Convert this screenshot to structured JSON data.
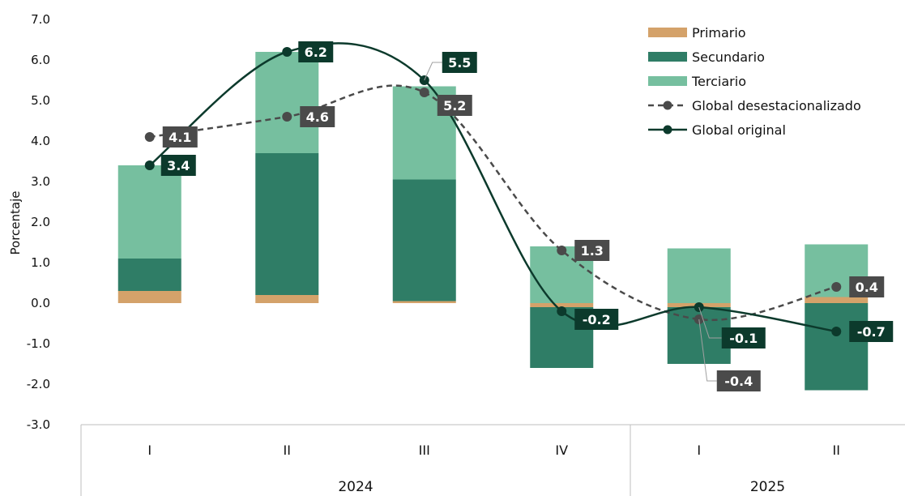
{
  "chart_data": {
    "type": "bar",
    "stacked": true,
    "ylabel": "Porcentaje",
    "ylim": [
      -3.0,
      7.0
    ],
    "yticks": [
      "7.0",
      "6.0",
      "5.0",
      "4.0",
      "3.0",
      "2.0",
      "1.0",
      "0.0",
      "-1.0",
      "-2.0",
      "-3.0"
    ],
    "categories": [
      "I",
      "II",
      "III",
      "IV",
      "I",
      "II"
    ],
    "groups": [
      {
        "label": "2024",
        "span": 4
      },
      {
        "label": "2025",
        "span": 2
      }
    ],
    "series": [
      {
        "name": "Primario",
        "kind": "bar",
        "color": "#d4a26a",
        "values": [
          0.3,
          0.2,
          0.05,
          -0.1,
          -0.1,
          0.15
        ]
      },
      {
        "name": "Secundario",
        "kind": "bar",
        "color": "#2f7d66",
        "values": [
          0.8,
          3.5,
          3.0,
          -1.5,
          -1.4,
          -2.15
        ]
      },
      {
        "name": "Terciario",
        "kind": "bar",
        "color": "#76bf9f",
        "values": [
          2.3,
          2.5,
          2.3,
          1.4,
          1.35,
          1.3
        ]
      },
      {
        "name": "Global desestacionalizado",
        "kind": "line",
        "dashed": true,
        "color": "#4a4a4a",
        "values": [
          4.1,
          4.6,
          5.2,
          1.3,
          -0.4,
          0.4
        ],
        "labels": [
          "4.1",
          "4.6",
          "5.2",
          "1.3",
          "-0.4",
          "0.4"
        ]
      },
      {
        "name": "Global original",
        "kind": "line",
        "dashed": false,
        "color": "#0c3a2c",
        "values": [
          3.4,
          6.2,
          5.5,
          -0.2,
          -0.1,
          -0.7
        ],
        "labels": [
          "3.4",
          "6.2",
          "5.5",
          "-0.2",
          "-0.1",
          "-0.7"
        ]
      }
    ],
    "grid": false,
    "legend_position": "top-right"
  }
}
